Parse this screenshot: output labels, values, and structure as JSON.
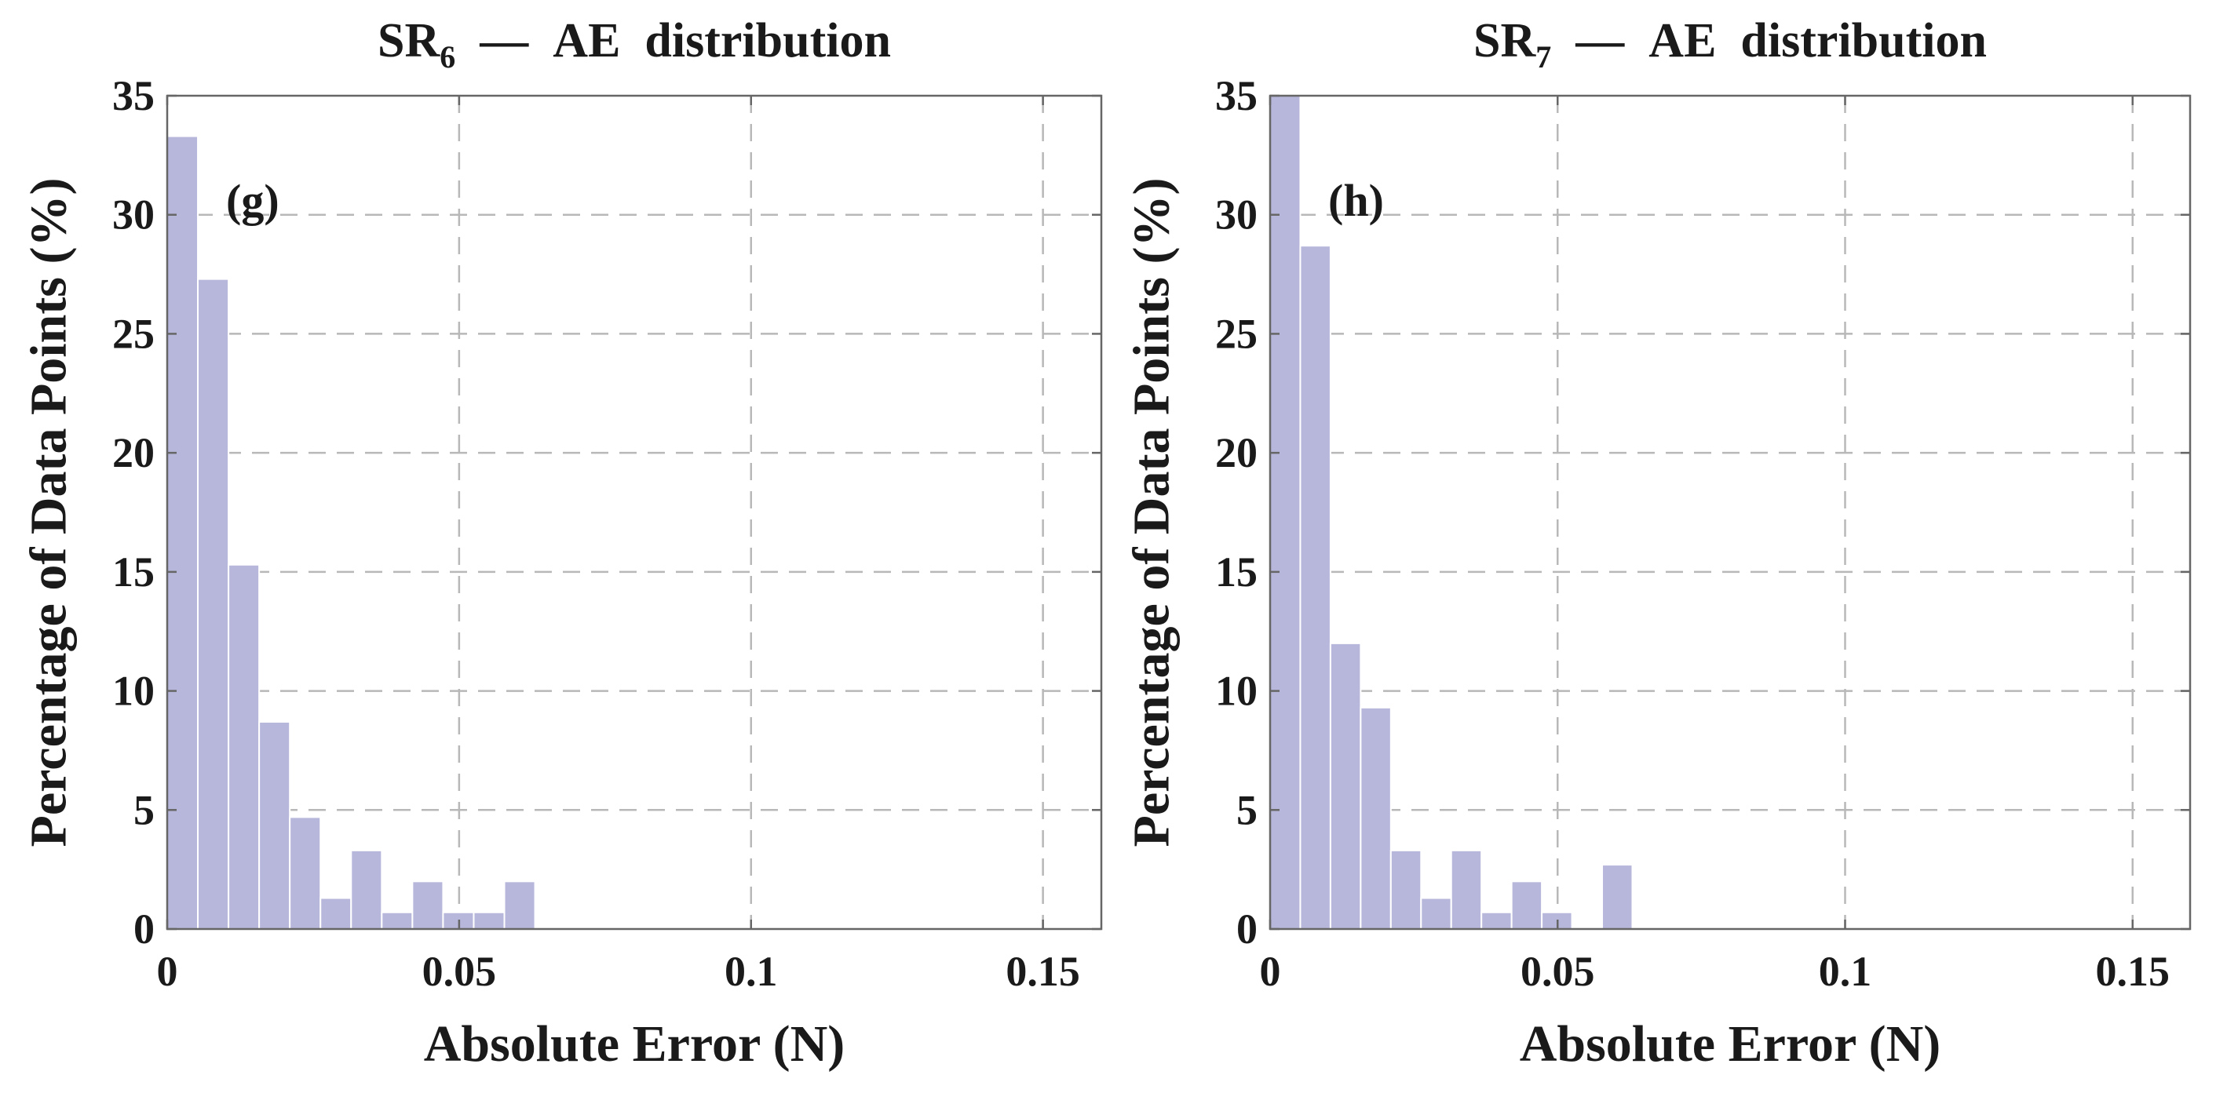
{
  "chart_data": [
    {
      "type": "bar",
      "title": "SR",
      "title_sub": "6",
      "title_rest": " —  AE  distribution",
      "annotation": "(g)",
      "xlabel": "Absolute Error (N)",
      "ylabel": "Percentage of Data Points (%)",
      "xlim": [
        0,
        0.16
      ],
      "ylim": [
        0,
        35
      ],
      "xticks": [
        0,
        0.05,
        0.1,
        0.15
      ],
      "xtick_labels": [
        "0",
        "0.05",
        "0.1",
        "0.15"
      ],
      "yticks": [
        0,
        5,
        10,
        15,
        20,
        25,
        30,
        35
      ],
      "ytick_labels": [
        "0",
        "5",
        "10",
        "15",
        "20",
        "25",
        "30",
        "35"
      ],
      "grid": true,
      "bin_width": 0.00525,
      "bin_edges_start": 0,
      "values": [
        33.3,
        27.3,
        15.3,
        8.7,
        4.7,
        1.3,
        3.3,
        0.7,
        2.0,
        0.7,
        0.7,
        2.0
      ],
      "bar_color": "#b7b7dc"
    },
    {
      "type": "bar",
      "title": "SR",
      "title_sub": "7",
      "title_rest": " —  AE  distribution",
      "annotation": "(h)",
      "xlabel": "Absolute Error (N)",
      "ylabel": "Percentage of Data Points (%)",
      "xlim": [
        0,
        0.16
      ],
      "ylim": [
        0,
        35
      ],
      "xticks": [
        0,
        0.05,
        0.1,
        0.15
      ],
      "xtick_labels": [
        "0",
        "0.05",
        "0.1",
        "0.15"
      ],
      "yticks": [
        0,
        5,
        10,
        15,
        20,
        25,
        30,
        35
      ],
      "ytick_labels": [
        "0",
        "5",
        "10",
        "15",
        "20",
        "25",
        "30",
        "35"
      ],
      "grid": true,
      "bin_width": 0.00525,
      "bin_edges_start": 0,
      "values": [
        35.0,
        28.7,
        12.0,
        9.3,
        3.3,
        1.3,
        3.3,
        0.7,
        2.0,
        0.7,
        0.0,
        2.7
      ],
      "bar_color": "#b7b7dc"
    }
  ]
}
